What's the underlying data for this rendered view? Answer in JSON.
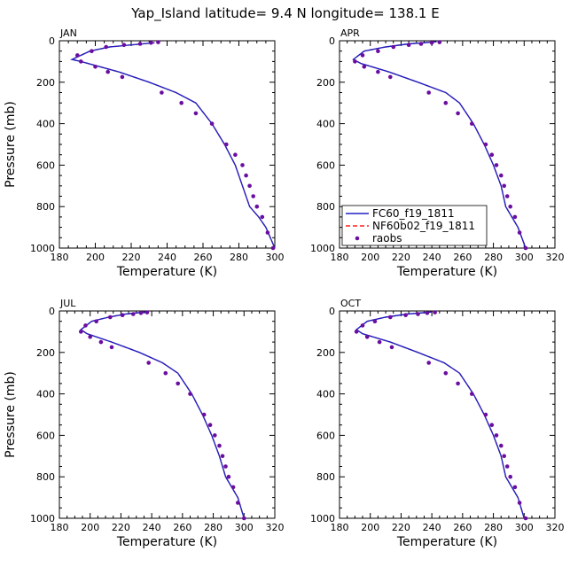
{
  "chart_data": {
    "type": "line",
    "title": "Yap_Island  latitude= 9.4 N longitude= 138.1 E",
    "xlabel": "Temperature (K)",
    "ylabel": "Pressure (mb)",
    "legend": {
      "placement": "lower-left of APR panel",
      "entries": [
        {
          "label": "FC60_f19_1811",
          "style": "solid-line",
          "color": "#2020c0"
        },
        {
          "label": "NF60b02_f19_1811",
          "style": "dashed-line",
          "color": "#ff2020"
        },
        {
          "label": "raobs",
          "style": "marker",
          "color": "#6a0da0"
        }
      ]
    },
    "panels": [
      {
        "label": "JAN",
        "xlim": [
          180,
          300
        ],
        "xticks": [
          "180",
          "200",
          "220",
          "240",
          "260",
          "280",
          "300"
        ],
        "ylim": [
          0,
          1000
        ],
        "yticks": [
          "0",
          "200",
          "400",
          "600",
          "800",
          "1000"
        ],
        "model_temperature": [
          233,
          220,
          208,
          197,
          187,
          192,
          213,
          230,
          245,
          256,
          265,
          272,
          278,
          282,
          286,
          291,
          295,
          300
        ],
        "model_pressure": [
          10,
          20,
          30,
          50,
          90,
          100,
          150,
          200,
          250,
          300,
          400,
          500,
          600,
          700,
          800,
          850,
          900,
          1000
        ],
        "raobs_temperature": [
          235,
          231,
          225,
          216,
          206,
          198,
          190,
          192,
          200,
          207,
          215,
          237,
          248,
          256,
          265,
          273,
          278,
          282,
          284,
          286,
          288,
          290,
          293,
          296,
          299
        ],
        "raobs_pressure": [
          7,
          10,
          15,
          20,
          30,
          50,
          70,
          100,
          125,
          150,
          175,
          250,
          300,
          350,
          400,
          500,
          550,
          600,
          650,
          700,
          750,
          800,
          850,
          925,
          1000
        ]
      },
      {
        "label": "APR",
        "xlim": [
          180,
          320
        ],
        "xticks": [
          "180",
          "200",
          "220",
          "240",
          "260",
          "280",
          "300",
          "320"
        ],
        "ylim": [
          0,
          1000
        ],
        "yticks": [
          "0",
          "200",
          "400",
          "600",
          "800",
          "1000"
        ],
        "model_temperature": [
          243,
          225,
          210,
          196,
          189,
          194,
          212,
          231,
          249,
          258,
          267,
          274,
          280,
          285,
          288,
          292,
          296,
          301
        ],
        "model_pressure": [
          5,
          15,
          30,
          50,
          90,
          110,
          150,
          200,
          250,
          300,
          400,
          500,
          600,
          700,
          800,
          850,
          900,
          1000
        ],
        "raobs_temperature": [
          245,
          240,
          233,
          225,
          215,
          205,
          195,
          190,
          196,
          205,
          213,
          238,
          249,
          257,
          266,
          275,
          279,
          282,
          285,
          287,
          289,
          291,
          294,
          297,
          301
        ],
        "raobs_pressure": [
          7,
          10,
          15,
          20,
          30,
          50,
          70,
          100,
          125,
          150,
          175,
          250,
          300,
          350,
          400,
          500,
          550,
          600,
          650,
          700,
          750,
          800,
          850,
          925,
          1000
        ]
      },
      {
        "label": "JUL",
        "xlim": [
          180,
          320
        ],
        "xticks": [
          "180",
          "200",
          "220",
          "240",
          "260",
          "280",
          "300",
          "320"
        ],
        "ylim": [
          0,
          1000
        ],
        "yticks": [
          "0",
          "200",
          "400",
          "600",
          "800",
          "1000"
        ],
        "model_temperature": [
          236,
          223,
          212,
          201,
          194,
          198,
          214,
          232,
          247,
          257,
          266,
          273,
          279,
          284,
          288,
          292,
          296,
          300
        ],
        "model_pressure": [
          5,
          15,
          30,
          50,
          90,
          110,
          150,
          200,
          250,
          300,
          400,
          500,
          600,
          700,
          800,
          850,
          900,
          1000
        ],
        "raobs_temperature": [
          237,
          233,
          228,
          221,
          213,
          204,
          197,
          194,
          200,
          207,
          214,
          238,
          249,
          257,
          265,
          274,
          278,
          281,
          284,
          286,
          288,
          290,
          293,
          296,
          300
        ],
        "raobs_pressure": [
          7,
          10,
          15,
          20,
          30,
          50,
          70,
          100,
          125,
          150,
          175,
          250,
          300,
          350,
          400,
          500,
          550,
          600,
          650,
          700,
          750,
          800,
          850,
          925,
          1000
        ]
      },
      {
        "label": "OCT",
        "xlim": [
          180,
          320
        ],
        "xticks": [
          "180",
          "200",
          "220",
          "240",
          "260",
          "280",
          "300",
          "320"
        ],
        "ylim": [
          0,
          1000
        ],
        "yticks": [
          "0",
          "200",
          "400",
          "600",
          "800",
          "1000"
        ],
        "model_temperature": [
          240,
          224,
          210,
          198,
          191,
          195,
          213,
          231,
          248,
          258,
          267,
          274,
          280,
          285,
          288,
          292,
          296,
          300
        ],
        "model_pressure": [
          5,
          15,
          30,
          50,
          90,
          110,
          150,
          200,
          250,
          300,
          400,
          500,
          600,
          700,
          800,
          850,
          900,
          1000
        ],
        "raobs_temperature": [
          242,
          237,
          231,
          223,
          213,
          203,
          195,
          191,
          198,
          206,
          214,
          238,
          249,
          257,
          266,
          275,
          279,
          282,
          285,
          287,
          289,
          291,
          294,
          297,
          301
        ],
        "raobs_pressure": [
          7,
          10,
          15,
          20,
          30,
          50,
          70,
          100,
          125,
          150,
          175,
          250,
          300,
          350,
          400,
          500,
          550,
          600,
          650,
          700,
          750,
          800,
          850,
          925,
          1000
        ]
      }
    ]
  }
}
